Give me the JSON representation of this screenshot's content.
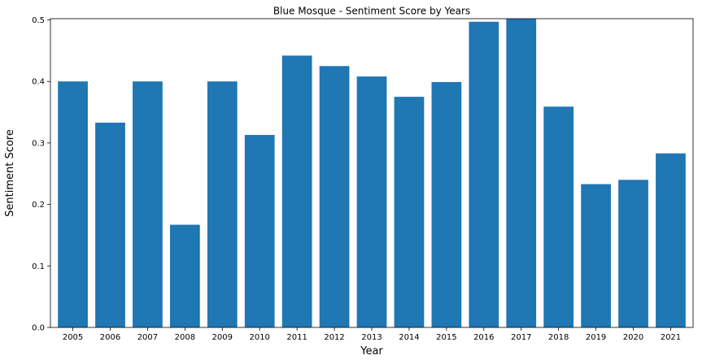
{
  "chart_data": {
    "type": "bar",
    "title": "Blue Mosque - Sentiment Score by Years",
    "xlabel": "Year",
    "ylabel": "Sentiment Score",
    "categories": [
      "2005",
      "2006",
      "2007",
      "2008",
      "2009",
      "2010",
      "2011",
      "2012",
      "2013",
      "2014",
      "2015",
      "2016",
      "2017",
      "2018",
      "2019",
      "2020",
      "2021"
    ],
    "values": [
      0.4,
      0.333,
      0.4,
      0.167,
      0.4,
      0.313,
      0.442,
      0.425,
      0.408,
      0.375,
      0.399,
      0.497,
      0.502,
      0.359,
      0.233,
      0.24,
      0.283
    ],
    "ylim": [
      0,
      0.502
    ],
    "yticks": [
      0.0,
      0.1,
      0.2,
      0.3,
      0.4,
      0.5
    ],
    "ytick_labels": [
      "0.0",
      "0.1",
      "0.2",
      "0.3",
      "0.4",
      "0.5"
    ],
    "grid": false,
    "bar_color": "#1f77b4"
  }
}
